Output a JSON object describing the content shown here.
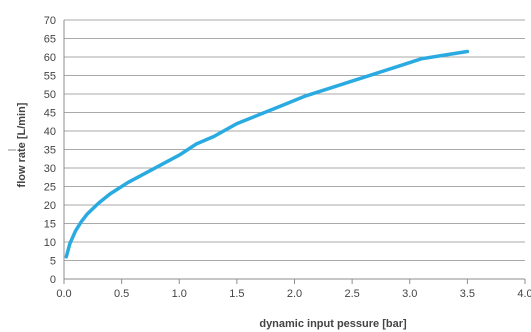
{
  "chart_data": {
    "type": "line",
    "title": "",
    "xlabel": "dynamic input pessure [bar]",
    "ylabel": "flow rate [L/min]",
    "xlim": [
      0,
      4.0
    ],
    "ylim": [
      0,
      70
    ],
    "x_ticks": [
      0.0,
      0.5,
      1.0,
      1.5,
      2.0,
      2.5,
      3.0,
      3.5,
      4.0
    ],
    "x_tick_labels": [
      "0.0",
      "0.5",
      "1.0",
      "1.5",
      "2.0",
      "2.5",
      "3.0",
      "3.5",
      "4.0"
    ],
    "y_ticks": [
      0,
      5,
      10,
      15,
      20,
      25,
      30,
      35,
      40,
      45,
      50,
      55,
      60,
      65,
      70
    ],
    "y_tick_labels": [
      "0",
      "5",
      "10",
      "15",
      "20",
      "25",
      "30",
      "35",
      "40",
      "45",
      "50",
      "55",
      "60",
      "65",
      "70"
    ],
    "grid": "horizontal",
    "series": [
      {
        "color": "#29abe2",
        "x": [
          0.02,
          0.05,
          0.1,
          0.15,
          0.2,
          0.3,
          0.4,
          0.55,
          0.7,
          0.85,
          1.0,
          1.15,
          1.3,
          1.5,
          1.7,
          1.9,
          2.1,
          2.3,
          2.5,
          2.7,
          2.9,
          3.1,
          3.3,
          3.5
        ],
        "y": [
          6,
          9.5,
          13,
          15.5,
          17.5,
          20.5,
          23,
          26,
          28.5,
          31,
          33.5,
          36.5,
          38.5,
          42,
          44.5,
          47,
          49.5,
          51.5,
          53.5,
          55.5,
          57.5,
          59.5,
          60.5,
          61.5
        ]
      }
    ]
  }
}
